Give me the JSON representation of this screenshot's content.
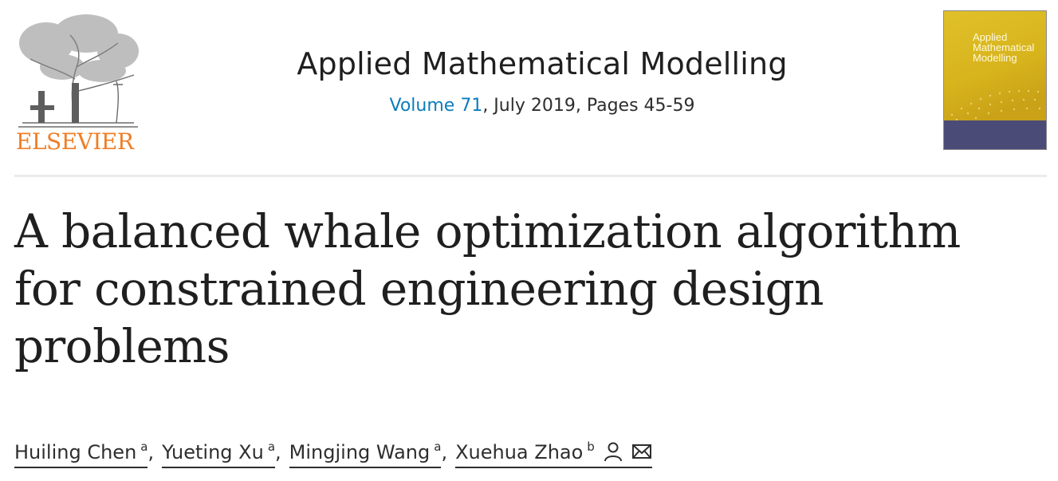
{
  "publisher": {
    "name": "ELSEVIER",
    "logo_icon": "elsevier-tree-icon",
    "color": "#f07e26"
  },
  "journal": {
    "title": "Applied Mathematical Modelling",
    "volume_label": "Volume 71",
    "issue_rest": ", July 2019, Pages 45-59",
    "link_color": "#0c7dbb"
  },
  "cover": {
    "title_line1": "Applied",
    "title_line2": "Mathematical",
    "title_line3": "Modelling",
    "icon": "journal-cover-thumbnail"
  },
  "article": {
    "title_line1": "A balanced whale optimization algorithm",
    "title_line2": "for constrained engineering design",
    "title_line3": "problems"
  },
  "authors": [
    {
      "name": "Huiling Chen",
      "affiliation": "a"
    },
    {
      "name": "Yueting Xu",
      "affiliation": "a"
    },
    {
      "name": "Mingjing Wang",
      "affiliation": "a"
    },
    {
      "name": "Xuehua Zhao",
      "affiliation": "b",
      "icons": [
        "person-icon",
        "mail-icon"
      ]
    }
  ],
  "separator": ","
}
